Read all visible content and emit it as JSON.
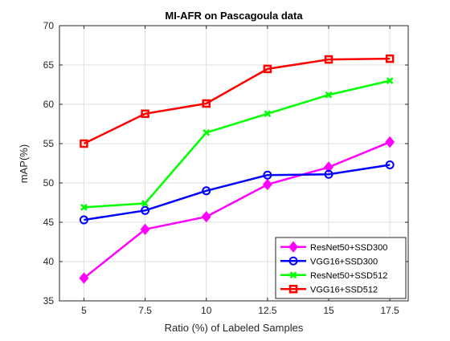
{
  "chart_data": {
    "type": "line",
    "title": "MI-AFR on Pascagoula data",
    "xlabel": "Ratio (%) of Labeled Samples",
    "ylabel": "mAP(%)",
    "x": [
      5,
      7.5,
      10,
      12.5,
      15,
      17.5
    ],
    "x_tick_labels": [
      "5",
      "7.5",
      "10",
      "12.5",
      "15",
      "17.5"
    ],
    "y_ticks": [
      35,
      40,
      45,
      50,
      55,
      60,
      65,
      70
    ],
    "xlim": [
      4,
      18.25
    ],
    "ylim": [
      35,
      70
    ],
    "grid": true,
    "legend_position": "bottom-right",
    "series": [
      {
        "name": "ResNet50+SSD300",
        "color": "#ff00ff",
        "marker": "diamond",
        "values": [
          37.9,
          44.1,
          45.7,
          49.8,
          52.0,
          55.2
        ]
      },
      {
        "name": "VGG16+SSD300",
        "color": "#0000ff",
        "marker": "circle",
        "values": [
          45.3,
          46.5,
          49.0,
          51.0,
          51.1,
          52.3
        ]
      },
      {
        "name": "ResNet50+SSD512",
        "color": "#00ff00",
        "marker": "x",
        "values": [
          46.9,
          47.4,
          56.4,
          58.8,
          61.2,
          63.0
        ]
      },
      {
        "name": "VGG16+SSD512",
        "color": "#ff0000",
        "marker": "square",
        "values": [
          55.0,
          58.8,
          60.1,
          64.5,
          65.7,
          65.8
        ]
      }
    ]
  }
}
